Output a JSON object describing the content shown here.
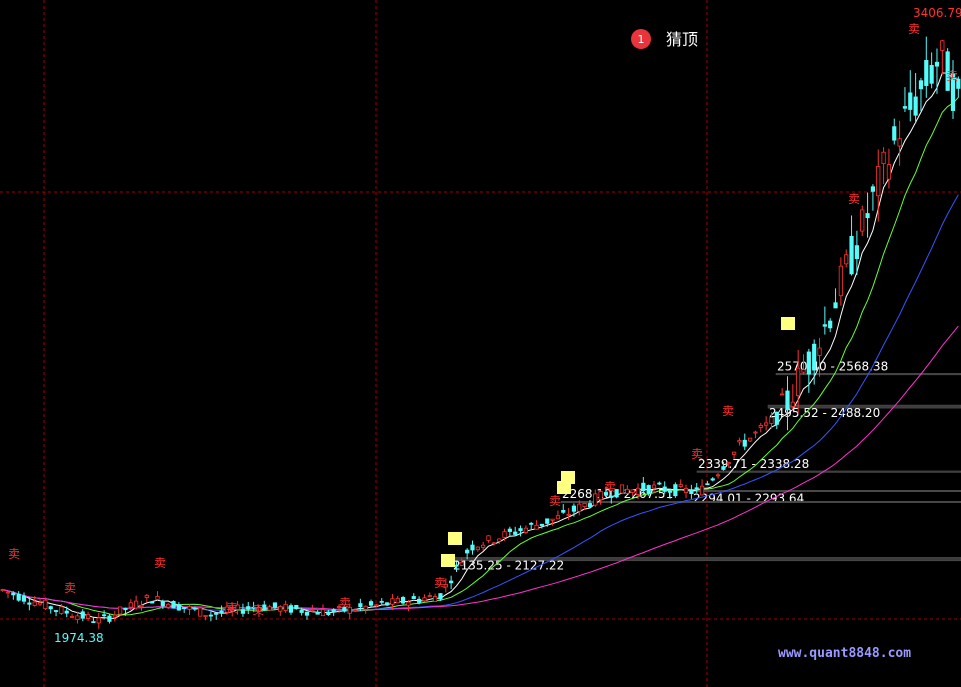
{
  "chart_data": {
    "type": "candlestick",
    "legend_badge": "1",
    "legend_label": "猜顶",
    "watermark": "www.quant8848.com",
    "price_high_label": "3406.79",
    "price_low_label": "1974.38",
    "gap_zones": [
      {
        "label": "2570.40 - 2568.38",
        "upper": 2570.4,
        "lower": 2568.38
      },
      {
        "label": "2495.52 - 2488.20",
        "upper": 2495.52,
        "lower": 2488.2
      },
      {
        "label": "2339.71 - 2338.28",
        "upper": 2339.71,
        "lower": 2338.28
      },
      {
        "label": "2294.01 - 2293.64",
        "upper": 2294.01,
        "lower": 2293.64
      },
      {
        "label": "2268.10 - 2267.51",
        "upper": 2268.1,
        "lower": 2267.51
      },
      {
        "label": "2135.25 - 2127.22",
        "upper": 2135.25,
        "lower": 2127.22
      }
    ],
    "y_range": [
      1940,
      3420
    ],
    "bars": 180,
    "grid": "dashed-red",
    "colors": {
      "up": "#ff3232",
      "down": "#54fcfc",
      "ma1": "#ffffff",
      "ma2": "#66ff33",
      "ma3": "#3355ff",
      "ma4": "#ff33cc",
      "signal_sell": "#ff3030",
      "signal_buy": "#ffff80",
      "grid": "#a00000",
      "watermark": "#9999ff"
    }
  }
}
